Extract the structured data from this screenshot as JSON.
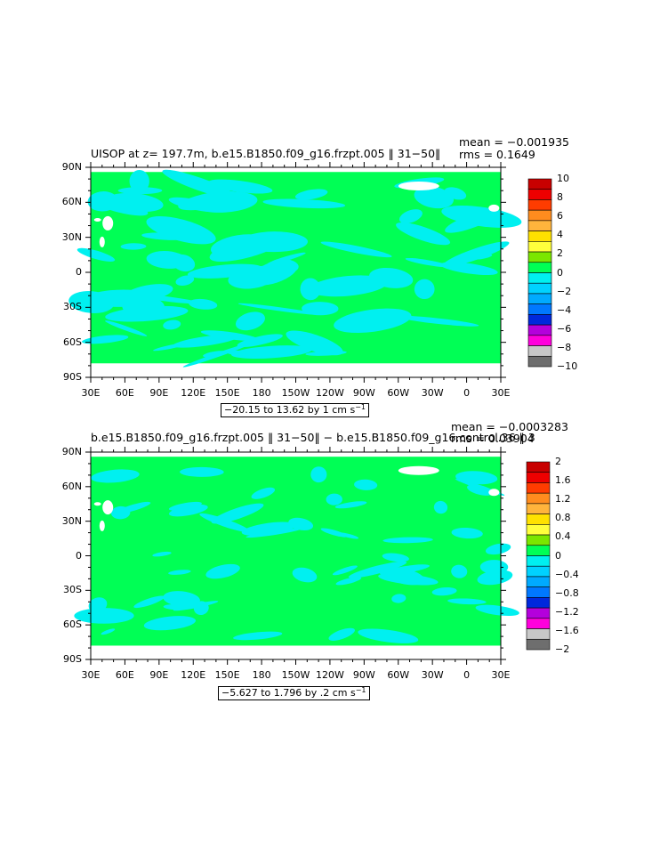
{
  "chart_data": [
    {
      "type": "heatmap",
      "title": "UISOP at z= 197.7m, b.e15.B1850.f09_g16.frzpt.005 ‖ 31−50‖",
      "mean_text": "mean = −0.001935",
      "rms_text": "rms = 0.1649",
      "range_text": "−20.15 to 13.62 by 1 cm s",
      "range_unit_sup": "−1",
      "x_ticks": [
        "30E",
        "60E",
        "90E",
        "120E",
        "150E",
        "180",
        "150W",
        "120W",
        "90W",
        "60W",
        "30W",
        "0",
        "30E"
      ],
      "y_ticks": [
        "90N",
        "60N",
        "30N",
        "0",
        "30S",
        "60S",
        "90S"
      ],
      "colorbar_labels": [
        "10",
        "8",
        "6",
        "4",
        "2",
        "0",
        "−2",
        "−4",
        "−6",
        "−8",
        "−10"
      ],
      "colorbar_min": -10,
      "colorbar_max": 10,
      "colorbar_colors": [
        "#c80000",
        "#ee0000",
        "#ff3c00",
        "#ff8c1e",
        "#ffb43c",
        "#ffe100",
        "#ffff3c",
        "#7be600",
        "#00ff55",
        "#00f0f0",
        "#00d2ff",
        "#00aaff",
        "#0078ff",
        "#0028dc",
        "#b400dc",
        "#ff00dc",
        "#c8c8c8",
        "#6e6e6e"
      ],
      "dominant_colors": {
        "positive_small": "#00ff55",
        "negative_small": "#00f0f0",
        "land": "#ffffff"
      }
    },
    {
      "type": "heatmap",
      "title": "b.e15.B1850.f09_g16.frzpt.005 ‖ 31−50‖ − b.e15.B1850.f09_g16.control.36 ‖ 3",
      "mean_text": "mean = −0.0003283",
      "rms_text": "rms = 0.03904",
      "range_text": "−5.627 to 1.796 by .2 cm s",
      "range_unit_sup": "−1",
      "x_ticks": [
        "30E",
        "60E",
        "90E",
        "120E",
        "150E",
        "180",
        "150W",
        "120W",
        "90W",
        "60W",
        "30W",
        "0",
        "30E"
      ],
      "y_ticks": [
        "90N",
        "60N",
        "30N",
        "0",
        "30S",
        "60S",
        "90S"
      ],
      "colorbar_labels": [
        "2",
        "1.6",
        "1.2",
        "0.8",
        "0.4",
        "0",
        "−0.4",
        "−0.8",
        "−1.2",
        "−1.6",
        "−2"
      ],
      "colorbar_min": -2,
      "colorbar_max": 2,
      "colorbar_colors": [
        "#c80000",
        "#ee0000",
        "#ff3c00",
        "#ff8c1e",
        "#ffb43c",
        "#ffe100",
        "#ffff3c",
        "#7be600",
        "#00ff55",
        "#00f0f0",
        "#00d2ff",
        "#00aaff",
        "#0078ff",
        "#0028dc",
        "#b400dc",
        "#ff00dc",
        "#c8c8c8",
        "#6e6e6e"
      ],
      "dominant_colors": {
        "positive_small": "#00ff55",
        "negative_small": "#00f0f0",
        "land": "#ffffff"
      }
    }
  ]
}
